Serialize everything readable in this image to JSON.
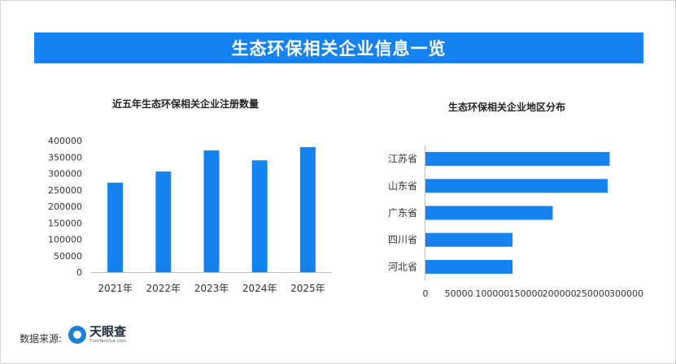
{
  "banner": {
    "title": "生态环保相关企业信息一览"
  },
  "colors": {
    "accent": "#1682f0",
    "bar": "#1682f0",
    "axis": "#bfbfbf"
  },
  "footer": {
    "source_label": "数据来源:",
    "logo_name": "天眼查",
    "logo_sub": "TianYanCha.com",
    "logo_icon": "tianyancha-logo-icon"
  },
  "chart_data": [
    {
      "type": "bar",
      "title": "近五年生态环保相关企业注册数量",
      "categories": [
        "2021年",
        "2022年",
        "2023年",
        "2024年",
        "2025年"
      ],
      "values": [
        272000,
        306000,
        370000,
        340000,
        380000
      ],
      "ylim": [
        0,
        400000
      ],
      "yticks": [
        0,
        50000,
        100000,
        150000,
        200000,
        250000,
        300000,
        350000,
        400000
      ],
      "xlabel": "",
      "ylabel": "",
      "grid": false
    },
    {
      "type": "bar",
      "orientation": "horizontal",
      "title": "生态环保相关企业地区分布",
      "categories": [
        "江苏省",
        "山东省",
        "广东省",
        "四川省",
        "河北省"
      ],
      "values": [
        275000,
        272000,
        190000,
        130000,
        130000
      ],
      "xlim": [
        0,
        300000
      ],
      "xticks": [
        0,
        50000,
        100000,
        150000,
        200000,
        250000,
        300000
      ],
      "xlabel": "",
      "ylabel": "",
      "grid": false
    }
  ]
}
